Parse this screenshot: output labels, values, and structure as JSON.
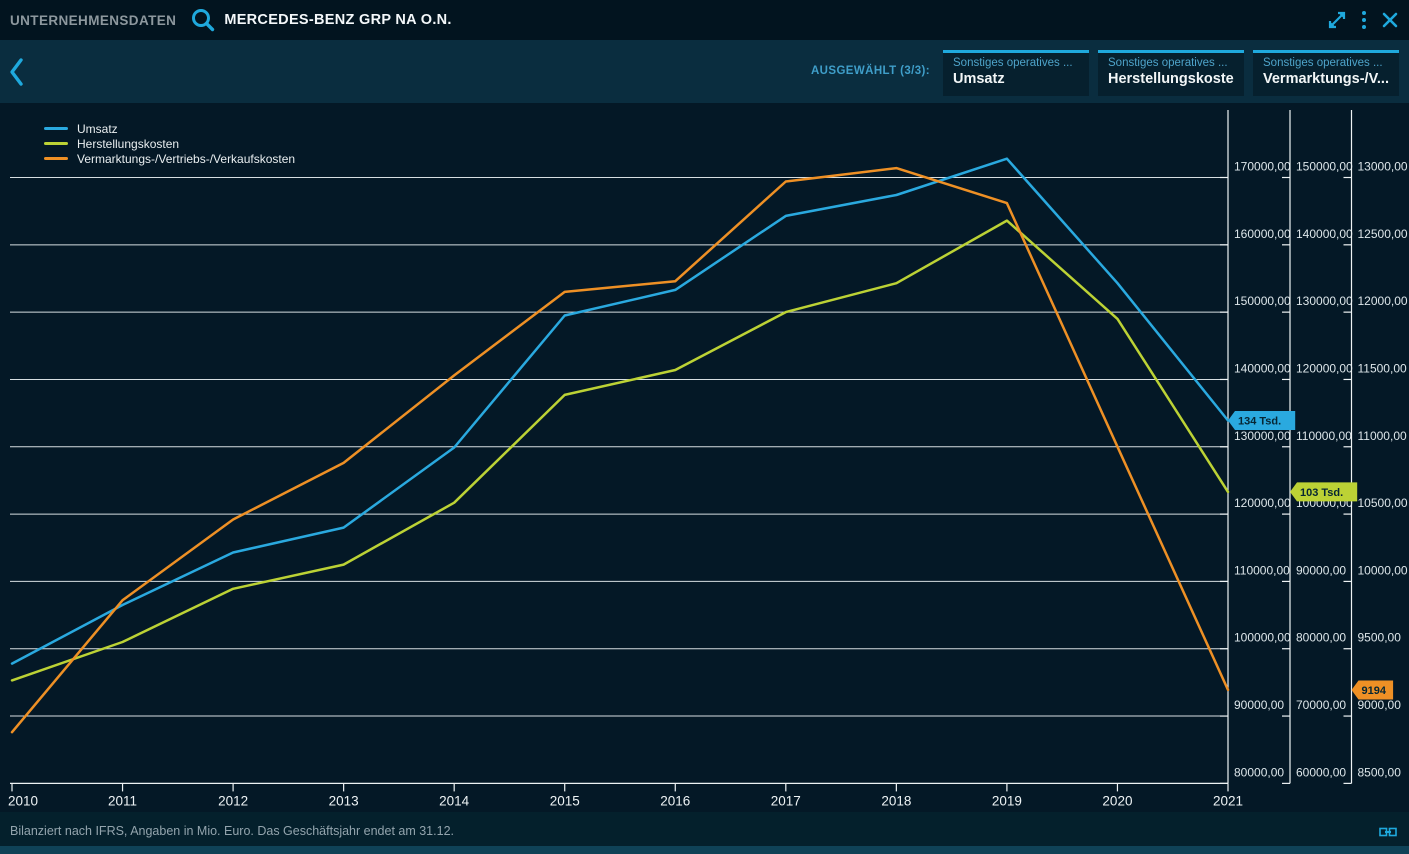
{
  "colors": {
    "accent": "#1fa9dd",
    "umsatz": "#2aa9df",
    "herstellungskosten": "#bcd235",
    "vermarktungskosten": "#ee9025"
  },
  "icons": {
    "top": [
      "search-icon",
      "expand-icon",
      "kebab-menu-icon",
      "close-icon"
    ],
    "subbar": [
      "chevron-left-icon"
    ],
    "footer": [
      "link-icon"
    ]
  },
  "header": {
    "app_label": "UNTERNEHMENSDATEN",
    "security_name": "MERCEDES-BENZ GRP NA O.N."
  },
  "toolbar": {
    "selected_label": "AUSGEWÄHLT (3/3):",
    "tabs": [
      {
        "category": "Sonstiges operatives ...",
        "label": "Umsatz"
      },
      {
        "category": "Sonstiges operatives ...",
        "label": "Herstellungskosten"
      },
      {
        "category": "Sonstiges operatives ...",
        "label": "Vermarktungs-/V..."
      }
    ]
  },
  "footer": {
    "note": "Bilanziert nach IFRS, Angaben in Mio. Euro. Das Geschäftsjahr endet am 31.12."
  },
  "chart_data": {
    "type": "line",
    "x": [
      "2010",
      "2011",
      "2012",
      "2013",
      "2014",
      "2015",
      "2016",
      "2017",
      "2018",
      "2019",
      "2020",
      "2021"
    ],
    "series": [
      {
        "name": "Umsatz",
        "color": "#2aa9df",
        "axis": 0,
        "values": [
          97800,
          106500,
          114300,
          118000,
          129900,
          149500,
          153300,
          164300,
          167400,
          172800,
          154300,
          133900
        ],
        "end_label": "134 Tsd."
      },
      {
        "name": "Herstellungskosten",
        "color": "#bcd235",
        "axis": 1,
        "values": [
          75300,
          81000,
          88900,
          92500,
          101700,
          117700,
          121400,
          130000,
          134300,
          143600,
          129000,
          103300
        ],
        "end_label": "103 Tsd."
      },
      {
        "name": "Vermarktungs-/Vertriebs-/Verkaufskosten",
        "color": "#ee9025",
        "axis": 2,
        "values": [
          8880,
          9860,
          10460,
          10880,
          11530,
          12150,
          12230,
          12970,
          13070,
          12810,
          11000,
          9194
        ],
        "end_label": "9194"
      }
    ],
    "axes": [
      {
        "side": "right",
        "top": 170000,
        "bottom": 80000,
        "step": 10000,
        "tick_format": "de,2-decimals"
      },
      {
        "side": "right",
        "top": 150000,
        "bottom": 60000,
        "step": 10000,
        "tick_format": "de,2-decimals"
      },
      {
        "side": "right",
        "top": 13000,
        "bottom": 8500,
        "step": 500,
        "tick_format": "de,2-decimals"
      }
    ],
    "grid": true,
    "legend_position": "top-left",
    "unit_note": "Angaben in Mio. Euro"
  }
}
